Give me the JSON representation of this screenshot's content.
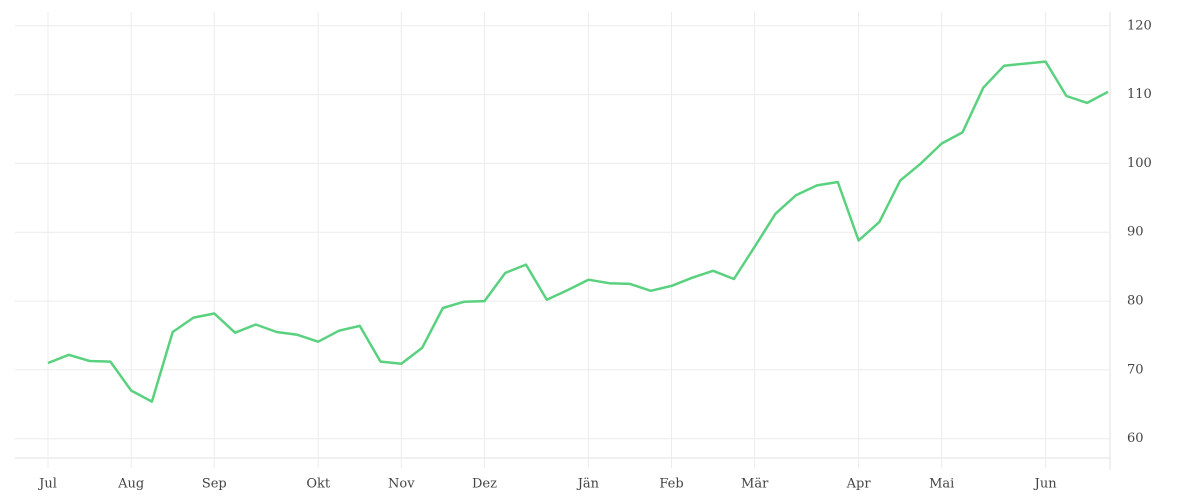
{
  "chart_data": {
    "type": "line",
    "categories": [
      "Jul",
      null,
      null,
      null,
      "Aug",
      null,
      null,
      null,
      "Sep",
      null,
      null,
      null,
      null,
      "Okt",
      null,
      null,
      null,
      "Nov",
      null,
      null,
      null,
      "Dez",
      null,
      null,
      null,
      null,
      "Jän",
      null,
      null,
      null,
      "Feb",
      null,
      null,
      null,
      "Mär",
      null,
      null,
      null,
      null,
      "Apr",
      null,
      null,
      null,
      "Mai",
      null,
      null,
      null,
      null,
      "Jun",
      null,
      null,
      null
    ],
    "values": [
      71.0,
      72.2,
      71.3,
      71.2,
      67.0,
      65.4,
      75.5,
      77.6,
      78.2,
      75.4,
      76.6,
      75.5,
      75.1,
      74.1,
      75.7,
      76.4,
      71.2,
      70.9,
      73.2,
      79.0,
      79.9,
      80.0,
      84.1,
      85.3,
      80.2,
      81.6,
      83.1,
      82.6,
      82.5,
      81.5,
      82.2,
      83.4,
      84.4,
      83.2,
      87.9,
      92.7,
      95.4,
      96.8,
      97.3,
      88.8,
      91.5,
      97.5,
      100.0,
      102.9,
      104.5,
      111.0,
      114.2,
      114.5,
      114.8,
      109.8,
      108.8,
      110.4
    ],
    "color": "#5ad17f",
    "ylim": [
      57.2,
      122
    ],
    "yticks": [
      60,
      70,
      80,
      90,
      100,
      110,
      120
    ],
    "grid": true
  }
}
